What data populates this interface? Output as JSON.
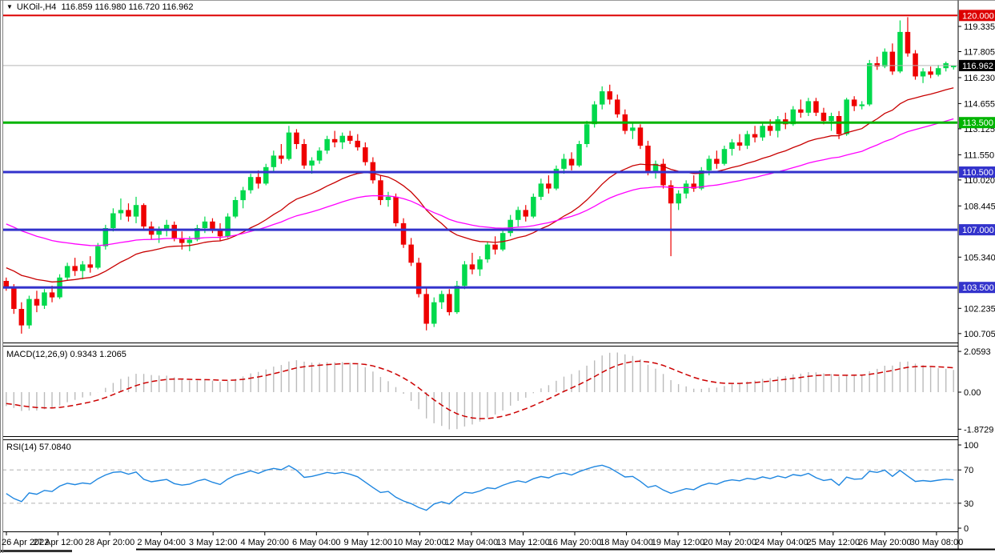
{
  "window": {
    "title": "UKOil-,H4  116.859 116.980 116.720 116.962"
  },
  "main_pane": {
    "y_ticks": [
      "119.335",
      "117.805",
      "116.230",
      "114.655",
      "113.125",
      "111.550",
      "110.020",
      "108.445",
      "105.340",
      "102.235",
      "100.705"
    ],
    "badges": [
      {
        "label": "120.000",
        "price": 120.0,
        "color": "#DD0000"
      },
      {
        "label": "116.962",
        "price": 116.962,
        "color": "#000000"
      },
      {
        "label": "113.500",
        "price": 113.5,
        "color": "#00B400"
      },
      {
        "label": "110.500",
        "price": 110.5,
        "color": "#3333CC"
      },
      {
        "label": "107.000",
        "price": 107.0,
        "color": "#3333CC"
      },
      {
        "label": "103.500",
        "price": 103.5,
        "color": "#3333CC"
      }
    ],
    "hlines": [
      {
        "name": "resistance-line-120",
        "price": 120.0,
        "color": "#DD0000",
        "w": 2
      },
      {
        "name": "level-line-113500",
        "price": 113.5,
        "color": "#00B400",
        "w": 3
      },
      {
        "name": "level-line-110500",
        "price": 110.5,
        "color": "#3333CC",
        "w": 3
      },
      {
        "name": "level-line-107000",
        "price": 107.0,
        "color": "#3333CC",
        "w": 3
      },
      {
        "name": "level-line-103500",
        "price": 103.5,
        "color": "#3333CC",
        "w": 3
      },
      {
        "name": "current-price-line",
        "price": 116.962,
        "color": "#B6B6B6",
        "w": 1
      }
    ]
  },
  "macd_pane": {
    "label": "MACD(12,26,9) 0.9343 1.2065",
    "ticks": [
      {
        "label": "2.0593",
        "v": 2.0593
      },
      {
        "label": "0.00",
        "v": 0
      },
      {
        "label": "-1.8729",
        "v": -1.8729
      }
    ]
  },
  "rsi_pane": {
    "label": "RSI(14) 57.0840",
    "ticks": [
      100,
      70,
      30,
      0
    ],
    "levels": [
      70,
      30
    ]
  },
  "time_axis": [
    "26 Apr 2022",
    "27 Apr 12:00",
    "28 Apr 20:00",
    "2 May 04:00",
    "3 May 12:00",
    "4 May 20:00",
    "6 May 04:00",
    "9 May 12:00",
    "10 May 20:00",
    "12 May 04:00",
    "13 May 12:00",
    "16 May 20:00",
    "18 May 04:00",
    "19 May 12:00",
    "20 May 20:00",
    "24 May 04:00",
    "25 May 12:00",
    "26 May 20:00",
    "30 May 08:00"
  ],
  "chart_data": {
    "type": "candlestick",
    "symbol": "UKOil-",
    "timeframe": "H4",
    "title": "UKOil-,H4",
    "last_ohlc": {
      "open": 116.859,
      "high": 116.98,
      "low": 116.72,
      "close": 116.962
    },
    "y_axis_range": [
      100.0,
      120.6
    ],
    "bull_color": "#00D94C",
    "bear_color": "#EE0000",
    "candles": [
      [
        103.9,
        104.1,
        103.3,
        103.5
      ],
      [
        103.5,
        103.7,
        101.9,
        102.2
      ],
      [
        102.2,
        102.6,
        100.7,
        101.2
      ],
      [
        101.2,
        103.0,
        101.0,
        102.8
      ],
      [
        102.8,
        103.3,
        102.0,
        102.4
      ],
      [
        102.4,
        103.4,
        102.2,
        103.2
      ],
      [
        103.2,
        103.6,
        102.6,
        102.9
      ],
      [
        102.9,
        104.3,
        102.8,
        104.1
      ],
      [
        104.1,
        105.0,
        103.9,
        104.8
      ],
      [
        104.8,
        105.3,
        104.2,
        104.5
      ],
      [
        104.5,
        105.1,
        104.0,
        104.9
      ],
      [
        104.9,
        105.4,
        104.4,
        104.7
      ],
      [
        104.7,
        106.2,
        104.6,
        106.0
      ],
      [
        106.0,
        107.3,
        105.8,
        107.1
      ],
      [
        107.1,
        108.3,
        106.9,
        108.0
      ],
      [
        108.0,
        108.9,
        107.6,
        108.2
      ],
      [
        108.2,
        108.6,
        107.5,
        107.8
      ],
      [
        107.8,
        109.0,
        107.4,
        108.5
      ],
      [
        108.5,
        108.6,
        107.0,
        107.2
      ],
      [
        107.2,
        107.5,
        106.4,
        106.7
      ],
      [
        106.7,
        107.2,
        106.2,
        107.0
      ],
      [
        107.0,
        107.6,
        106.6,
        107.3
      ],
      [
        107.3,
        107.5,
        106.3,
        106.5
      ],
      [
        106.5,
        106.9,
        105.8,
        106.2
      ],
      [
        106.2,
        106.6,
        105.7,
        106.4
      ],
      [
        106.4,
        107.3,
        106.3,
        107.1
      ],
      [
        107.1,
        107.8,
        106.8,
        107.5
      ],
      [
        107.5,
        107.7,
        106.8,
        107.0
      ],
      [
        107.0,
        107.4,
        106.3,
        106.6
      ],
      [
        106.6,
        108.0,
        106.5,
        107.8
      ],
      [
        107.8,
        109.0,
        107.7,
        108.8
      ],
      [
        108.8,
        109.6,
        108.3,
        109.4
      ],
      [
        109.4,
        110.4,
        109.2,
        110.2
      ],
      [
        110.2,
        110.6,
        109.5,
        109.8
      ],
      [
        109.8,
        111.0,
        109.7,
        110.8
      ],
      [
        110.8,
        111.8,
        110.5,
        111.5
      ],
      [
        111.5,
        112.2,
        111.0,
        111.3
      ],
      [
        111.3,
        113.3,
        111.2,
        112.9
      ],
      [
        112.9,
        113.1,
        111.9,
        112.2
      ],
      [
        112.2,
        112.5,
        110.7,
        110.9
      ],
      [
        110.9,
        111.4,
        110.4,
        111.2
      ],
      [
        111.2,
        112.0,
        111.0,
        111.8
      ],
      [
        111.8,
        112.7,
        111.6,
        112.5
      ],
      [
        112.5,
        113.0,
        112.0,
        112.3
      ],
      [
        112.3,
        112.9,
        111.9,
        112.7
      ],
      [
        112.7,
        113.0,
        112.2,
        112.4
      ],
      [
        112.4,
        112.8,
        111.8,
        112.0
      ],
      [
        112.0,
        112.3,
        110.9,
        111.1
      ],
      [
        111.1,
        111.4,
        109.8,
        110.0
      ],
      [
        110.0,
        110.3,
        108.5,
        108.8
      ],
      [
        108.8,
        109.3,
        108.4,
        109.0
      ],
      [
        109.0,
        109.2,
        107.2,
        107.4
      ],
      [
        107.4,
        107.7,
        105.9,
        106.1
      ],
      [
        106.1,
        106.5,
        104.8,
        105.0
      ],
      [
        105.0,
        105.3,
        102.9,
        103.1
      ],
      [
        103.1,
        103.5,
        100.9,
        101.3
      ],
      [
        101.3,
        102.9,
        101.1,
        102.6
      ],
      [
        102.6,
        103.3,
        102.2,
        103.1
      ],
      [
        103.1,
        103.4,
        101.8,
        102.0
      ],
      [
        102.0,
        103.9,
        101.9,
        103.6
      ],
      [
        103.6,
        105.1,
        103.4,
        104.9
      ],
      [
        104.9,
        105.6,
        104.3,
        104.6
      ],
      [
        104.6,
        105.4,
        104.2,
        105.2
      ],
      [
        105.2,
        106.3,
        105.0,
        106.1
      ],
      [
        106.1,
        106.6,
        105.5,
        105.8
      ],
      [
        105.8,
        107.0,
        105.7,
        106.8
      ],
      [
        106.8,
        107.9,
        106.6,
        107.6
      ],
      [
        107.6,
        108.4,
        107.2,
        108.2
      ],
      [
        108.2,
        108.5,
        107.5,
        107.8
      ],
      [
        107.8,
        109.2,
        107.7,
        109.0
      ],
      [
        109.0,
        110.1,
        108.8,
        109.8
      ],
      [
        109.8,
        110.3,
        109.2,
        109.5
      ],
      [
        109.5,
        110.9,
        109.4,
        110.7
      ],
      [
        110.7,
        111.6,
        110.4,
        111.3
      ],
      [
        111.3,
        111.7,
        110.6,
        110.9
      ],
      [
        110.9,
        112.4,
        110.8,
        112.2
      ],
      [
        112.2,
        113.6,
        112.0,
        113.4
      ],
      [
        113.4,
        114.8,
        113.2,
        114.6
      ],
      [
        114.6,
        115.7,
        114.3,
        115.4
      ],
      [
        115.4,
        115.8,
        114.6,
        114.9
      ],
      [
        114.9,
        115.2,
        113.8,
        114.0
      ],
      [
        114.0,
        114.3,
        112.8,
        113.0
      ],
      [
        113.0,
        113.5,
        112.5,
        113.2
      ],
      [
        113.2,
        113.4,
        111.9,
        112.1
      ],
      [
        112.1,
        112.4,
        110.3,
        110.5
      ],
      [
        110.5,
        111.2,
        110.1,
        111.0
      ],
      [
        111.0,
        111.3,
        109.5,
        109.7
      ],
      [
        109.7,
        110.0,
        105.4,
        108.6
      ],
      [
        108.6,
        109.4,
        108.2,
        109.2
      ],
      [
        109.2,
        110.0,
        108.9,
        109.8
      ],
      [
        109.8,
        110.3,
        109.3,
        109.5
      ],
      [
        109.5,
        110.8,
        109.4,
        110.6
      ],
      [
        110.6,
        111.5,
        110.3,
        111.3
      ],
      [
        111.3,
        111.8,
        110.7,
        111.0
      ],
      [
        111.0,
        112.1,
        110.9,
        111.9
      ],
      [
        111.9,
        112.5,
        111.5,
        112.3
      ],
      [
        112.3,
        112.8,
        111.8,
        112.1
      ],
      [
        112.1,
        113.0,
        111.9,
        112.8
      ],
      [
        112.8,
        113.3,
        112.3,
        112.6
      ],
      [
        112.6,
        113.5,
        112.4,
        113.3
      ],
      [
        113.3,
        113.7,
        112.7,
        113.0
      ],
      [
        113.0,
        113.9,
        112.6,
        113.7
      ],
      [
        113.7,
        114.1,
        113.1,
        113.4
      ],
      [
        113.4,
        114.5,
        113.3,
        114.3
      ],
      [
        114.3,
        114.9,
        113.8,
        114.1
      ],
      [
        114.1,
        115.0,
        113.9,
        114.8
      ],
      [
        114.8,
        115.0,
        113.9,
        114.1
      ],
      [
        114.1,
        114.4,
        113.4,
        113.6
      ],
      [
        113.6,
        114.1,
        113.0,
        113.9
      ],
      [
        113.9,
        114.2,
        112.5,
        112.8
      ],
      [
        112.8,
        115.0,
        112.7,
        114.9
      ],
      [
        114.9,
        115.1,
        114.2,
        114.5
      ],
      [
        114.5,
        114.8,
        114.3,
        114.6
      ],
      [
        114.6,
        117.3,
        114.5,
        117.1
      ],
      [
        117.1,
        117.5,
        116.7,
        116.9
      ],
      [
        116.9,
        118.0,
        116.8,
        117.8
      ],
      [
        117.8,
        118.3,
        116.4,
        116.6
      ],
      [
        116.6,
        119.7,
        116.5,
        119.0
      ],
      [
        119.0,
        119.9,
        117.5,
        117.7
      ],
      [
        117.7,
        117.9,
        116.1,
        116.3
      ],
      [
        116.3,
        116.8,
        115.9,
        116.6
      ],
      [
        116.6,
        116.9,
        116.2,
        116.4
      ],
      [
        116.4,
        117.0,
        116.3,
        116.8
      ],
      [
        116.8,
        117.2,
        116.6,
        117.1
      ],
      [
        116.859,
        116.98,
        116.72,
        116.962
      ]
    ],
    "overlays": [
      {
        "name": "ma-fast-line",
        "type": "ema",
        "period": 24,
        "color": "#C80000",
        "seed": 104.8
      },
      {
        "name": "ma-slow-line",
        "type": "ema",
        "period": 52,
        "color": "#FF00FF",
        "seed": 107.5
      }
    ],
    "indicators": {
      "macd": {
        "fast": 12,
        "slow": 26,
        "signal": 9,
        "last_main": 0.9343,
        "last_signal": 1.2065,
        "hist_color": "#BBBBBB",
        "signal_color": "#CC0000",
        "seeds": {
          "ema12": 104.2,
          "ema26": 104.9,
          "signal": -0.55
        },
        "axis_max": 2.0593,
        "axis_min": -1.8729
      },
      "rsi": {
        "period": 14,
        "last": 57.084,
        "color": "#1E86E0",
        "seed_gain": 0.25,
        "seed_loss": 0.35
      }
    }
  }
}
